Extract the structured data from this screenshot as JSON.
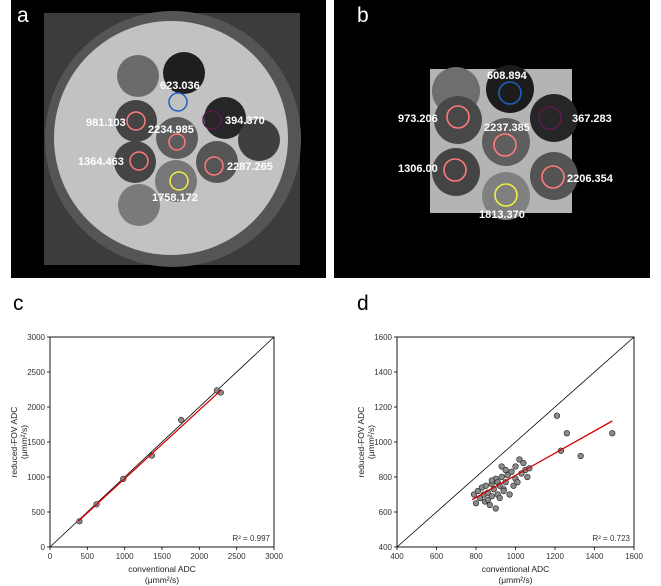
{
  "panels": {
    "a": {
      "letter": "a",
      "roi_labels": [
        "623.036",
        "981.103",
        "2234.985",
        "394.370",
        "1364.463",
        "2287.265",
        "1758.172"
      ]
    },
    "b": {
      "letter": "b",
      "roi_labels": [
        "608.894",
        "973.206",
        "2237.385",
        "367.283",
        "1306.00",
        "2206.354",
        "1813.370"
      ]
    }
  },
  "chart_data": [
    {
      "panel": "c",
      "type": "scatter",
      "xlabel": "conventional ADC",
      "xunit": "(μmm²/s)",
      "ylabel": "reduced-FOV ADC",
      "yunit": "(μmm²/s)",
      "xlim": [
        0,
        3000
      ],
      "ylim": [
        0,
        3000
      ],
      "xticks": [
        "0",
        "500",
        "1000",
        "1500",
        "2000",
        "2500",
        "3000"
      ],
      "yticks": [
        "0",
        "500",
        "1000",
        "1500",
        "2000",
        "2500",
        "3000"
      ],
      "points": {
        "x": [
          394,
          623,
          981,
          1364,
          1758,
          2235,
          2287
        ],
        "y": [
          367,
          609,
          973,
          1306,
          1813,
          2237,
          2206
        ]
      },
      "fit_line": {
        "x": [
          380,
          2290
        ],
        "y": [
          370,
          2240
        ]
      },
      "identity_line": true,
      "annotation": "R² = 0.997",
      "colors": {
        "points": "#8a8a8a",
        "fit": "#d40000",
        "identity": "#000000"
      }
    },
    {
      "panel": "d",
      "type": "scatter",
      "xlabel": "conventional ADC",
      "xunit": "(μmm²/s)",
      "ylabel": "reduced-FOV ADC",
      "yunit": "(μmm²/s)",
      "xlim": [
        400,
        1600
      ],
      "ylim": [
        400,
        1600
      ],
      "xticks": [
        "400",
        "600",
        "800",
        "1000",
        "1200",
        "1400",
        "1600"
      ],
      "yticks": [
        "400",
        "600",
        "800",
        "1000",
        "1200",
        "1400",
        "1600"
      ],
      "points": {
        "x": [
          790,
          800,
          810,
          820,
          830,
          840,
          845,
          850,
          860,
          870,
          880,
          880,
          890,
          900,
          900,
          910,
          910,
          920,
          920,
          930,
          930,
          940,
          950,
          950,
          960,
          970,
          980,
          990,
          1000,
          1000,
          1010,
          1020,
          1030,
          1040,
          1050,
          1060,
          1070,
          860,
          880,
          940,
          1210,
          1230,
          1260,
          1330,
          1490
        ],
        "y": [
          700,
          650,
          720,
          680,
          740,
          700,
          660,
          750,
          710,
          640,
          760,
          690,
          730,
          620,
          790,
          700,
          770,
          750,
          680,
          860,
          800,
          730,
          840,
          770,
          810,
          700,
          830,
          750,
          860,
          790,
          770,
          900,
          820,
          880,
          840,
          800,
          850,
          670,
          780,
          720,
          1150,
          950,
          1050,
          920,
          1050
        ]
      },
      "fit_line": {
        "x": [
          780,
          1490
        ],
        "y": [
          670,
          1120
        ]
      },
      "identity_line": true,
      "annotation": "R² = 0.723",
      "colors": {
        "points": "#8a8a8a",
        "fit": "#d40000",
        "identity": "#000000"
      }
    }
  ]
}
